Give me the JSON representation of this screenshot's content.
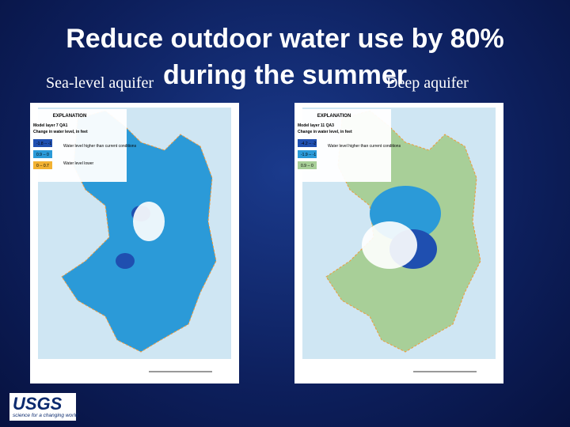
{
  "title": "Reduce outdoor water use by 80% during the summer",
  "labels": {
    "left": "Sea-level aquifer",
    "right": "Deep aquifer"
  },
  "maps": [
    {
      "heading": "EXPLANATION",
      "layer": "Model layer 7 QA1",
      "subtitle": "Change in water level, in feet",
      "land": "#2b9ad8",
      "patch": "#1f4fb0",
      "legend": [
        {
          "range": "-1.8 -- -1",
          "color": "#1f4fb0"
        },
        {
          "range": "0.9 -- 0",
          "color": "#2b9ad8"
        },
        {
          "range": "0 -- 0.7",
          "color": "#f2b233"
        }
      ],
      "notes": [
        "Water level higher than current conditions",
        "Water level lower"
      ]
    },
    {
      "heading": "EXPLANATION",
      "layer": "Model layer 11 QA3",
      "subtitle": "Change in water level, in feet",
      "land": "#a8cf98",
      "patch": "#2b9ad8",
      "legend": [
        {
          "range": "-4.2 -- -2",
          "color": "#1f4fb0"
        },
        {
          "range": "-1.9 -- -1",
          "color": "#2b9ad8"
        },
        {
          "range": "0.9 -- 0",
          "color": "#a8cf98"
        }
      ],
      "notes": [
        "Water level higher than current conditions"
      ]
    }
  ],
  "logo": {
    "name": "USGS",
    "tagline": "science for a changing world"
  }
}
